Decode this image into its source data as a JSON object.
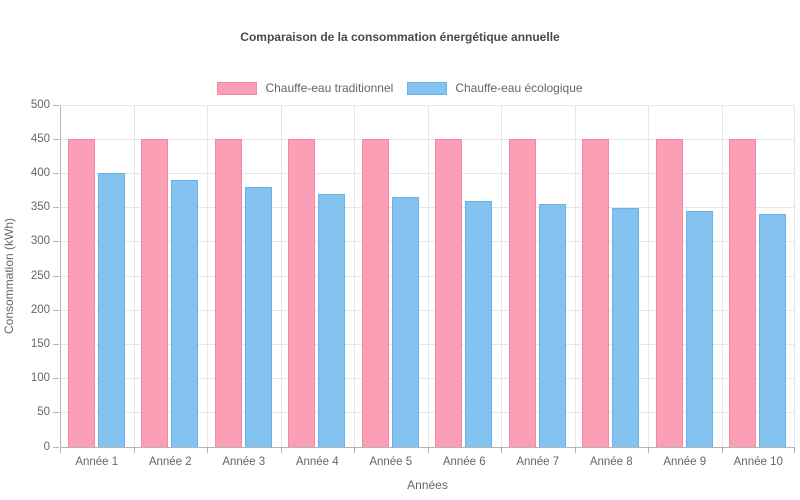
{
  "chart_data": {
    "type": "bar",
    "title": "Comparaison de la consommation énergétique annuelle",
    "xlabel": "Années",
    "ylabel": "Consommation (kWh)",
    "categories": [
      "Année 1",
      "Année 2",
      "Année 3",
      "Année 4",
      "Année 5",
      "Année 6",
      "Année 7",
      "Année 8",
      "Année 9",
      "Année 10"
    ],
    "series": [
      {
        "name": "Chauffe-eau traditionnel",
        "color": "#FA9FB5",
        "border_color": "#F787A5",
        "values": [
          450,
          450,
          450,
          450,
          450,
          450,
          450,
          450,
          450,
          450
        ]
      },
      {
        "name": "Chauffe-eau écologique",
        "color": "#84C3F0",
        "border_color": "#68B1E9",
        "values": [
          400,
          390,
          380,
          370,
          365,
          360,
          355,
          350,
          345,
          340
        ]
      }
    ],
    "ylim": [
      0,
      500
    ],
    "ytick_step": 50,
    "grid": true,
    "legend_position": "top"
  }
}
